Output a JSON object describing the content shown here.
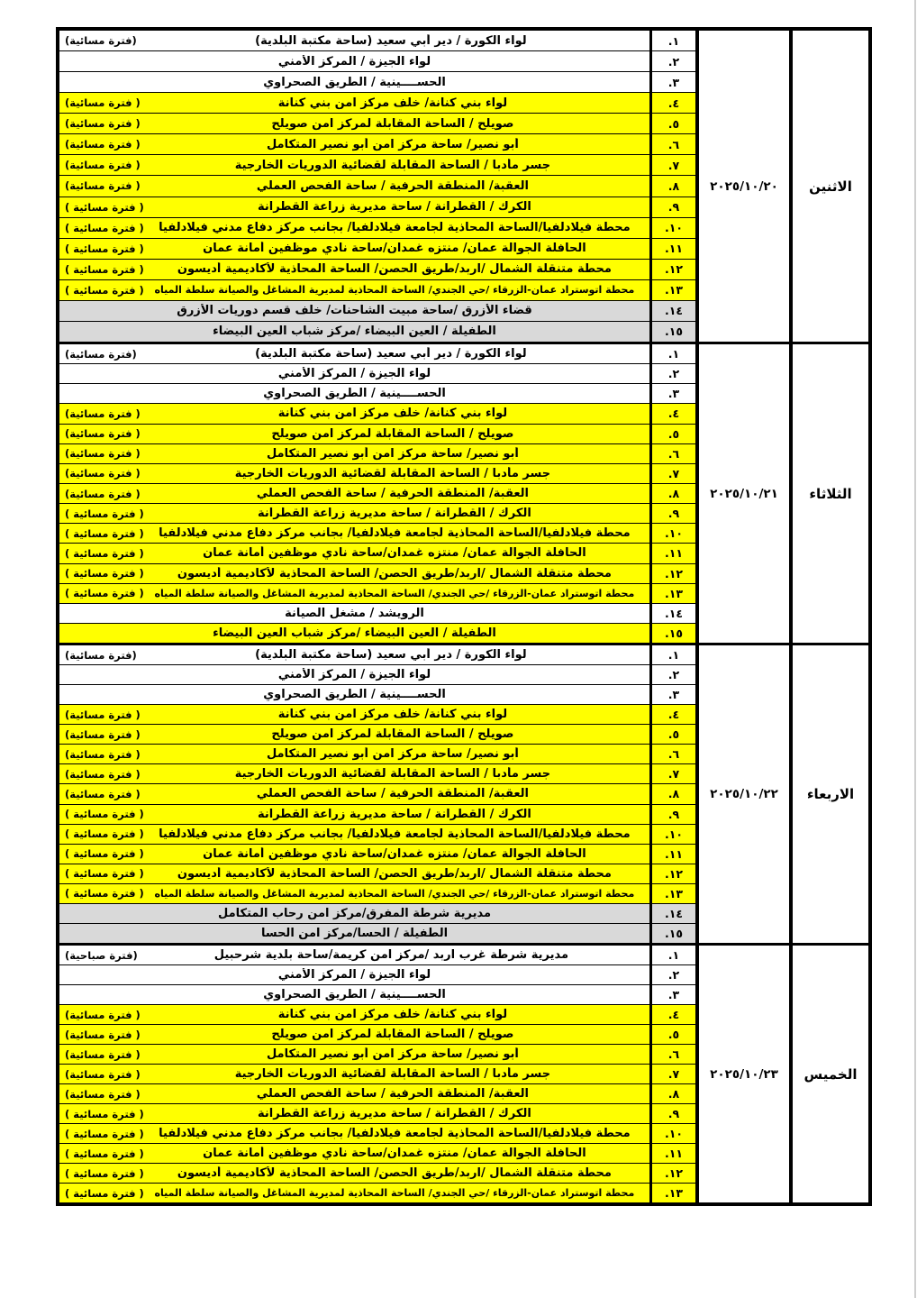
{
  "colors": {
    "highlight_yellow": "#ffff00",
    "highlight_gray": "#d9d9d9",
    "row_white": "#ffffff",
    "border_black": "#000000",
    "scan_edge_gray": "#cfcfcf"
  },
  "schedule": [
    {
      "day": "الاثنين",
      "date": "٢٠٢٥/١٠/٢٠",
      "rows": [
        {
          "num": ".١",
          "text": "لواء الكورة / دير أبي سعيد (ساحة مكتبة البلدية)",
          "note": "(فترة مسائية)",
          "bg": "white"
        },
        {
          "num": ".٢",
          "text": "لواء الجيزة / المركز الأمني",
          "note": "",
          "bg": "white"
        },
        {
          "num": ".٣",
          "text": "الحســــينية / الطريق الصحراوي",
          "note": "",
          "bg": "white"
        },
        {
          "num": ".٤",
          "text": "لواء بني كنانة/ خلف مركز امن بني كنانة",
          "note": "( فترة مسائية)",
          "bg": "yellow"
        },
        {
          "num": ".٥",
          "text": "صويلح / الساحة المقابلة لمركز امن صويلح",
          "note": "( فترة مسائية)",
          "bg": "yellow"
        },
        {
          "num": ".٦",
          "text": "أبو نصير/ ساحة مركز امن أبو نصير المتكامل",
          "note": "( فترة مسائية)",
          "bg": "yellow"
        },
        {
          "num": ".٧",
          "text": "جسر مأدبا / الساحة المقابلة لقضائية الدوريات الخارجية",
          "note": "( فترة مسائية)",
          "bg": "yellow"
        },
        {
          "num": ".٨",
          "text": "العقبة/ المنطقة الحرفية / ساحة الفحص العملي",
          "note": "( فترة مسائية)",
          "bg": "yellow"
        },
        {
          "num": ".٩",
          "text": "الكرك / القطرانة / ساحة مديرية زراعة القطرانة",
          "note": "( فترة مسائية )",
          "bg": "yellow"
        },
        {
          "num": ".١٠",
          "text": "محطة فيلادلفيا/الساحة المحاذية لجامعة فيلادلفيا/ بجانب مركز دفاع مدني فيلادلفيا",
          "note": "( فترة مسائية )",
          "bg": "yellow"
        },
        {
          "num": ".١١",
          "text": "الحافلة الجوالة عمان/ منتزه غمدان/ساحة نادي موظفين أمانة عمان",
          "note": "( فترة مسائية )",
          "bg": "yellow"
        },
        {
          "num": ".١٢",
          "text": "محطة متنقلة الشمال /اربد/طريق الحصن/ الساحة المحاذية لأكاديمية أديسون",
          "note": "( فترة مسائية )",
          "bg": "yellow"
        },
        {
          "num": ".١٣",
          "text": "محطة اتوستراد عمان-الزرقاء /حي الجندي/ الساحة المحاذية لمديرية المشاغل والصيانة سلطة المياه",
          "note": "( فترة مسائية )",
          "bg": "yellow"
        },
        {
          "num": ".١٤",
          "text": "قضاء الأزرق /ساحة مبيت الشاحنات/ خلف قسم دوريات الأزرق",
          "note": "",
          "bg": "gray"
        },
        {
          "num": ".١٥",
          "text": "الطفيلة /  العين البيضاء /مركز شباب العين البيضاء",
          "note": "",
          "bg": "gray"
        }
      ]
    },
    {
      "day": "الثلاثاء",
      "date": "٢٠٢٥/١٠/٢١",
      "rows": [
        {
          "num": ".١",
          "text": "لواء الكورة / دير أبي سعيد (ساحة مكتبة البلدية)",
          "note": "(فترة مسائية)",
          "bg": "white"
        },
        {
          "num": ".٢",
          "text": "لواء الجيزة / المركز الأمني",
          "note": "",
          "bg": "white"
        },
        {
          "num": ".٣",
          "text": "الحســــينية / الطريق الصحراوي",
          "note": "",
          "bg": "white"
        },
        {
          "num": ".٤",
          "text": "لواء بني كنانة/ خلف مركز امن بني كنانة",
          "note": "( فترة مسائية)",
          "bg": "yellow"
        },
        {
          "num": ".٥",
          "text": "صويلح / الساحة المقابلة لمركز امن صويلح",
          "note": "( فترة مسائية)",
          "bg": "yellow"
        },
        {
          "num": ".٦",
          "text": "أبو نصير/ ساحة مركز امن أبو نصير المتكامل",
          "note": "( فترة مسائية)",
          "bg": "yellow"
        },
        {
          "num": ".٧",
          "text": "جسر مأدبا / الساحة المقابلة لقضائية الدوريات الخارجية",
          "note": "( فترة مسائية)",
          "bg": "yellow"
        },
        {
          "num": ".٨",
          "text": "العقبة/ المنطقة الحرفية / ساحة الفحص العملي",
          "note": "( فترة مسائية)",
          "bg": "yellow"
        },
        {
          "num": ".٩",
          "text": "الكرك / القطرانة / ساحة مديرية زراعة القطرانة",
          "note": "( فترة مسائية )",
          "bg": "yellow"
        },
        {
          "num": ".١٠",
          "text": "محطة فيلادلفيا/الساحة المحاذية لجامعة فيلادلفيا/ بجانب مركز دفاع مدني فيلادلفيا",
          "note": "( فترة مسائية )",
          "bg": "yellow"
        },
        {
          "num": ".١١",
          "text": "الحافلة الجوالة عمان/ منتزه غمدان/ساحة نادي موظفين أمانة عمان",
          "note": "( فترة مسائية )",
          "bg": "yellow"
        },
        {
          "num": ".١٢",
          "text": "محطة متنقلة الشمال /اربد/طريق الحصن/ الساحة المحاذية لأكاديمية أديسون",
          "note": "( فترة مسائية )",
          "bg": "yellow"
        },
        {
          "num": ".١٣",
          "text": "محطة اتوستراد عمان-الزرقاء /حي الجندي/ الساحة المحاذية لمديرية المشاغل والصيانة سلطة المياه",
          "note": "( فترة مسائية )",
          "bg": "yellow"
        },
        {
          "num": ".١٤",
          "text": "الرويشد / مشغل الصيانة",
          "note": "",
          "bg": "white"
        },
        {
          "num": ".١٥",
          "text": "الطفيلة /  العين البيضاء /مركز شباب العين البيضاء",
          "note": "",
          "bg": "yellow"
        }
      ]
    },
    {
      "day": "الاربعاء",
      "date": "٢٠٢٥/١٠/٢٢",
      "rows": [
        {
          "num": ".١",
          "text": "لواء الكورة / دير أبي سعيد (ساحة مكتبة البلدية)",
          "note": "(فترة مسائية)",
          "bg": "white"
        },
        {
          "num": ".٢",
          "text": "لواء الجيزة / المركز الأمني",
          "note": "",
          "bg": "white"
        },
        {
          "num": ".٣",
          "text": "الحســــينية / الطريق الصحراوي",
          "note": "",
          "bg": "white"
        },
        {
          "num": ".٤",
          "text": "لواء بني كنانة/ خلف مركز امن بني كنانة",
          "note": "( فترة مسائية)",
          "bg": "yellow"
        },
        {
          "num": ".٥",
          "text": "صويلح / الساحة المقابلة لمركز امن صويلح",
          "note": "( فترة مسائية)",
          "bg": "yellow"
        },
        {
          "num": ".٦",
          "text": "أبو نصير/ ساحة مركز امن أبو نصير المتكامل",
          "note": "( فترة مسائية)",
          "bg": "yellow"
        },
        {
          "num": ".٧",
          "text": "جسر مأدبا / الساحة المقابلة لقضائية الدوريات الخارجية",
          "note": "( فترة مسائية)",
          "bg": "yellow"
        },
        {
          "num": ".٨",
          "text": "العقبة/ المنطقة الحرفية / ساحة الفحص العملي",
          "note": "( فترة مسائية)",
          "bg": "yellow"
        },
        {
          "num": ".٩",
          "text": "الكرك / القطرانة / ساحة مديرية زراعة القطرانة",
          "note": "( فترة مسائية )",
          "bg": "yellow"
        },
        {
          "num": ".١٠",
          "text": "محطة فيلادلفيا/الساحة المحاذية لجامعة فيلادلفيا/ بجانب مركز دفاع مدني فيلادلفيا",
          "note": "( فترة مسائية )",
          "bg": "yellow"
        },
        {
          "num": ".١١",
          "text": "الحافلة الجوالة عمان/ منتزه غمدان/ساحة نادي موظفين أمانة عمان",
          "note": "( فترة مسائية )",
          "bg": "yellow"
        },
        {
          "num": ".١٢",
          "text": "محطة متنقلة الشمال /اربد/طريق الحصن/ الساحة المحاذية لأكاديمية أديسون",
          "note": "( فترة مسائية )",
          "bg": "yellow"
        },
        {
          "num": ".١٣",
          "text": "محطة اتوستراد عمان-الزرقاء /حي الجندي/ الساحة المحاذية لمديرية المشاغل والصيانة سلطة المياه",
          "note": "( فترة مسائية )",
          "bg": "yellow"
        },
        {
          "num": ".١٤",
          "text": "مديرية شرطة المفرق/مركز امن رحاب المتكامل",
          "note": "",
          "bg": "gray"
        },
        {
          "num": ".١٥",
          "text": "الطفيلة / الحسا/مركز امن الحسا",
          "note": "",
          "bg": "gray"
        }
      ]
    },
    {
      "day": "الخميس",
      "date": "٢٠٢٥/١٠/٢٣",
      "rows": [
        {
          "num": ".١",
          "text": "مديرية شرطة غرب اربد /مركز امن كريمة/ساحة بلدية شرحبيل",
          "note": "(فترة صباحية)",
          "bg": "white"
        },
        {
          "num": ".٢",
          "text": "لواء الجيزة / المركز الأمني",
          "note": "",
          "bg": "white"
        },
        {
          "num": ".٣",
          "text": "الحســــينية / الطريق الصحراوي",
          "note": "",
          "bg": "white"
        },
        {
          "num": ".٤",
          "text": "لواء بني كنانة/ خلف مركز امن بني كنانة",
          "note": "( فترة مسائية)",
          "bg": "yellow"
        },
        {
          "num": ".٥",
          "text": "صويلح / الساحة المقابلة لمركز امن صويلح",
          "note": "( فترة مسائية)",
          "bg": "yellow"
        },
        {
          "num": ".٦",
          "text": "أبو نصير/ ساحة مركز امن أبو نصير المتكامل",
          "note": "( فترة مسائية)",
          "bg": "yellow"
        },
        {
          "num": ".٧",
          "text": "جسر مأدبا / الساحة المقابلة لقضائية الدوريات الخارجية",
          "note": "( فترة مسائية)",
          "bg": "yellow"
        },
        {
          "num": ".٨",
          "text": "العقبة/ المنطقة الحرفية / ساحة الفحص العملي",
          "note": "( فترة مسائية)",
          "bg": "yellow"
        },
        {
          "num": ".٩",
          "text": "الكرك / القطرانة / ساحة مديرية زراعة القطرانة",
          "note": "( فترة مسائية )",
          "bg": "yellow"
        },
        {
          "num": ".١٠",
          "text": "محطة فيلادلفيا/الساحة المحاذية لجامعة فيلادلفيا/ بجانب مركز دفاع مدني فيلادلفيا",
          "note": "( فترة مسائية )",
          "bg": "yellow"
        },
        {
          "num": ".١١",
          "text": "الحافلة الجوالة عمان/ منتزه غمدان/ساحة نادي موظفين أمانة عمان",
          "note": "( فترة مسائية )",
          "bg": "yellow"
        },
        {
          "num": ".١٢",
          "text": "محطة متنقلة الشمال /اربد/طريق الحصن/ الساحة المحاذية لأكاديمية أديسون",
          "note": "( فترة مسائية )",
          "bg": "yellow"
        },
        {
          "num": ".١٣",
          "text": "محطة اتوستراد عمان-الزرقاء /حي الجندي/ الساحة المحاذية لمديرية المشاغل والصيانة سلطة المياه",
          "note": "( فترة مسائية )",
          "bg": "yellow"
        }
      ]
    }
  ]
}
